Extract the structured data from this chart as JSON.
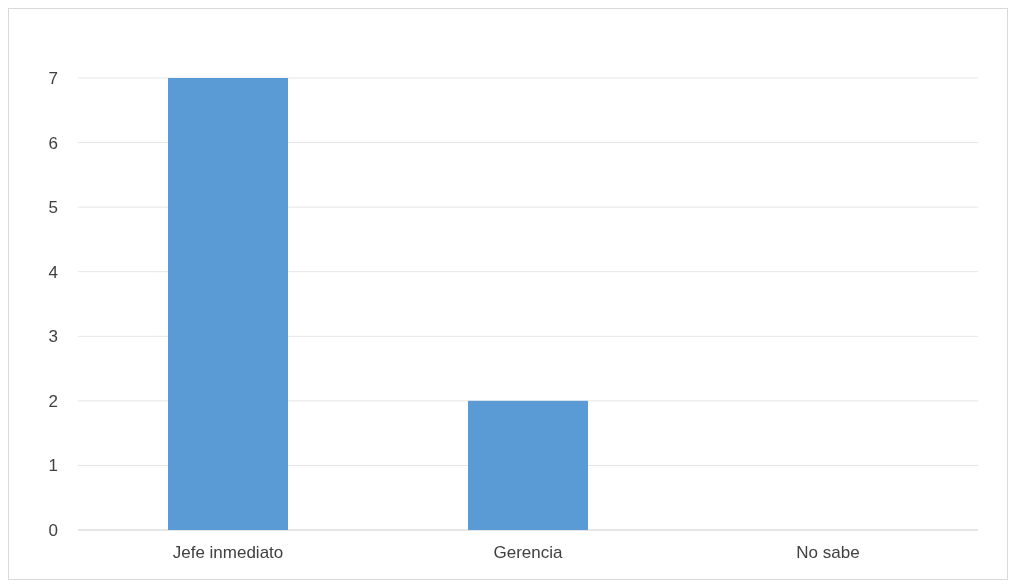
{
  "chart_data": {
    "type": "bar",
    "categories": [
      "Jefe inmediato",
      "Gerencia",
      "No sabe"
    ],
    "values": [
      7,
      2,
      0
    ],
    "color": "#5b9bd5",
    "ylim": [
      0,
      7
    ],
    "yticks": [
      0,
      1,
      2,
      3,
      4,
      5,
      6,
      7
    ],
    "grid": "y"
  }
}
